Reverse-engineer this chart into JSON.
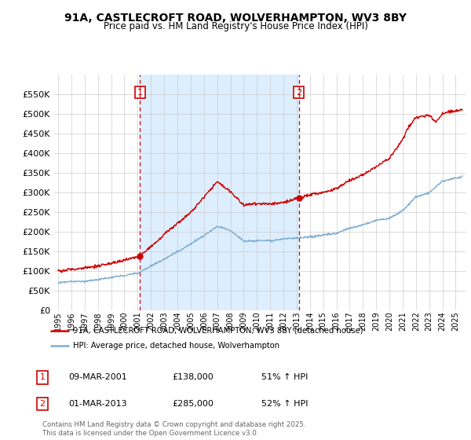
{
  "title": "91A, CASTLECROFT ROAD, WOLVERHAMPTON, WV3 8BY",
  "subtitle": "Price paid vs. HM Land Registry's House Price Index (HPI)",
  "red_line_color": "#cc0000",
  "blue_line_color": "#7dadd4",
  "shade_color": "#ddeeff",
  "dashed_line_color": "#cc0000",
  "legend_label_red": "91A, CASTLECROFT ROAD, WOLVERHAMPTON, WV3 8BY (detached house)",
  "legend_label_blue": "HPI: Average price, detached house, Wolverhampton",
  "transaction1_date": "09-MAR-2001",
  "transaction1_price": "£138,000",
  "transaction1_hpi": "51% ↑ HPI",
  "transaction2_date": "01-MAR-2013",
  "transaction2_price": "£285,000",
  "transaction2_hpi": "52% ↑ HPI",
  "copyright_text": "Contains HM Land Registry data © Crown copyright and database right 2025.\nThis data is licensed under the Open Government Licence v3.0.",
  "transaction1_year": 2001.18,
  "transaction2_year": 2013.16,
  "transaction1_price_val": 138000,
  "transaction2_price_val": 285000,
  "background_color": "#ffffff",
  "plot_bg_color": "#ffffff",
  "grid_color": "#cccccc"
}
